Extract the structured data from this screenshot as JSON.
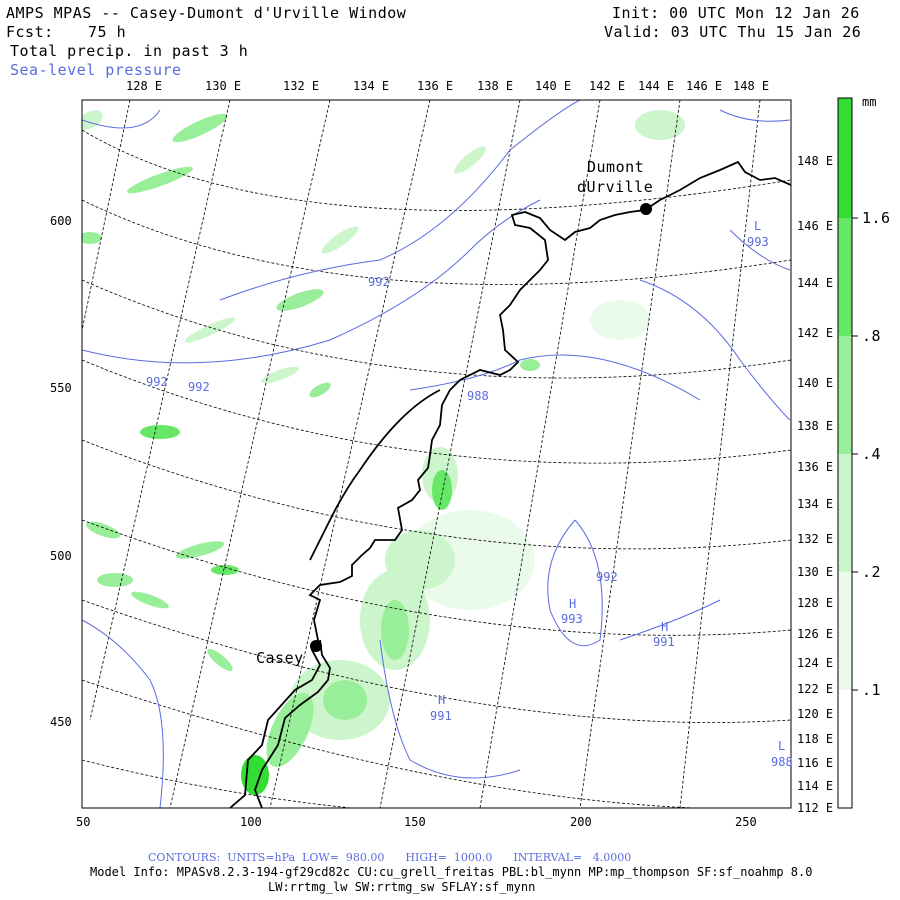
{
  "header": {
    "title": "AMPS MPAS -- Casey-Dumont d'Urville Window",
    "init": "Init: 00 UTC Mon 12 Jan 26",
    "fcst_label": "Fcst:",
    "fcst_value": "75 h",
    "valid": "Valid: 03 UTC Thu 15 Jan 26",
    "field1": "Total precip. in past 3 h",
    "field2": "Sea-level pressure"
  },
  "axes": {
    "x_ticks": [
      "50",
      "100",
      "150",
      "200",
      "250"
    ],
    "y_ticks": [
      "600",
      "550",
      "500",
      "450"
    ],
    "lon_top": [
      "128 E",
      "130 E",
      "132 E",
      "134 E",
      "136 E",
      "138 E",
      "140 E",
      "142 E",
      "144 E",
      "146 E",
      "148 E"
    ],
    "lon_right": [
      "148 E",
      "146 E",
      "144 E",
      "142 E",
      "140 E",
      "138 E",
      "136 E",
      "134 E",
      "132 E",
      "130 E",
      "128 E",
      "126 E",
      "124 E",
      "122 E",
      "120 E",
      "118 E",
      "116 E",
      "114 E",
      "112 E"
    ]
  },
  "colorbar": {
    "unit": "mm",
    "labels": [
      "1.6",
      ".8",
      ".4",
      ".2",
      ".1"
    ],
    "colors": [
      "#33dd33",
      "#66e866",
      "#99ee99",
      "#ccf5cc",
      "#ebfbeb"
    ]
  },
  "stations": [
    {
      "name_lines": [
        "Dumont",
        "dUrville"
      ],
      "id": "dumont"
    },
    {
      "name_lines": [
        "Casey"
      ],
      "id": "casey"
    }
  ],
  "pressure_labels": [
    "992",
    "992",
    "992",
    "988",
    "992",
    "993",
    "991",
    "991",
    "993",
    "988"
  ],
  "centers": [
    "L",
    "H",
    "H",
    "H",
    "L"
  ],
  "footer": {
    "contours": "CONTOURS:  UNITS=hPa  LOW=  980.00      HIGH=  1000.0      INTERVAL=   4.0000",
    "model_info": "Model Info: MPASv8.2.3-194-gf29cd82c CU:cu_grell_freitas PBL:bl_mynn MP:mp_thompson SF:sf_noahmp 8.0",
    "physics": "LW:rrtmg_lw SW:rrtmg_sw SFLAY:sf_mynn"
  },
  "colors": {
    "contour": "#5a6be0",
    "precip_light": "#ccf5cc",
    "precip_heavy": "#33dd33"
  }
}
